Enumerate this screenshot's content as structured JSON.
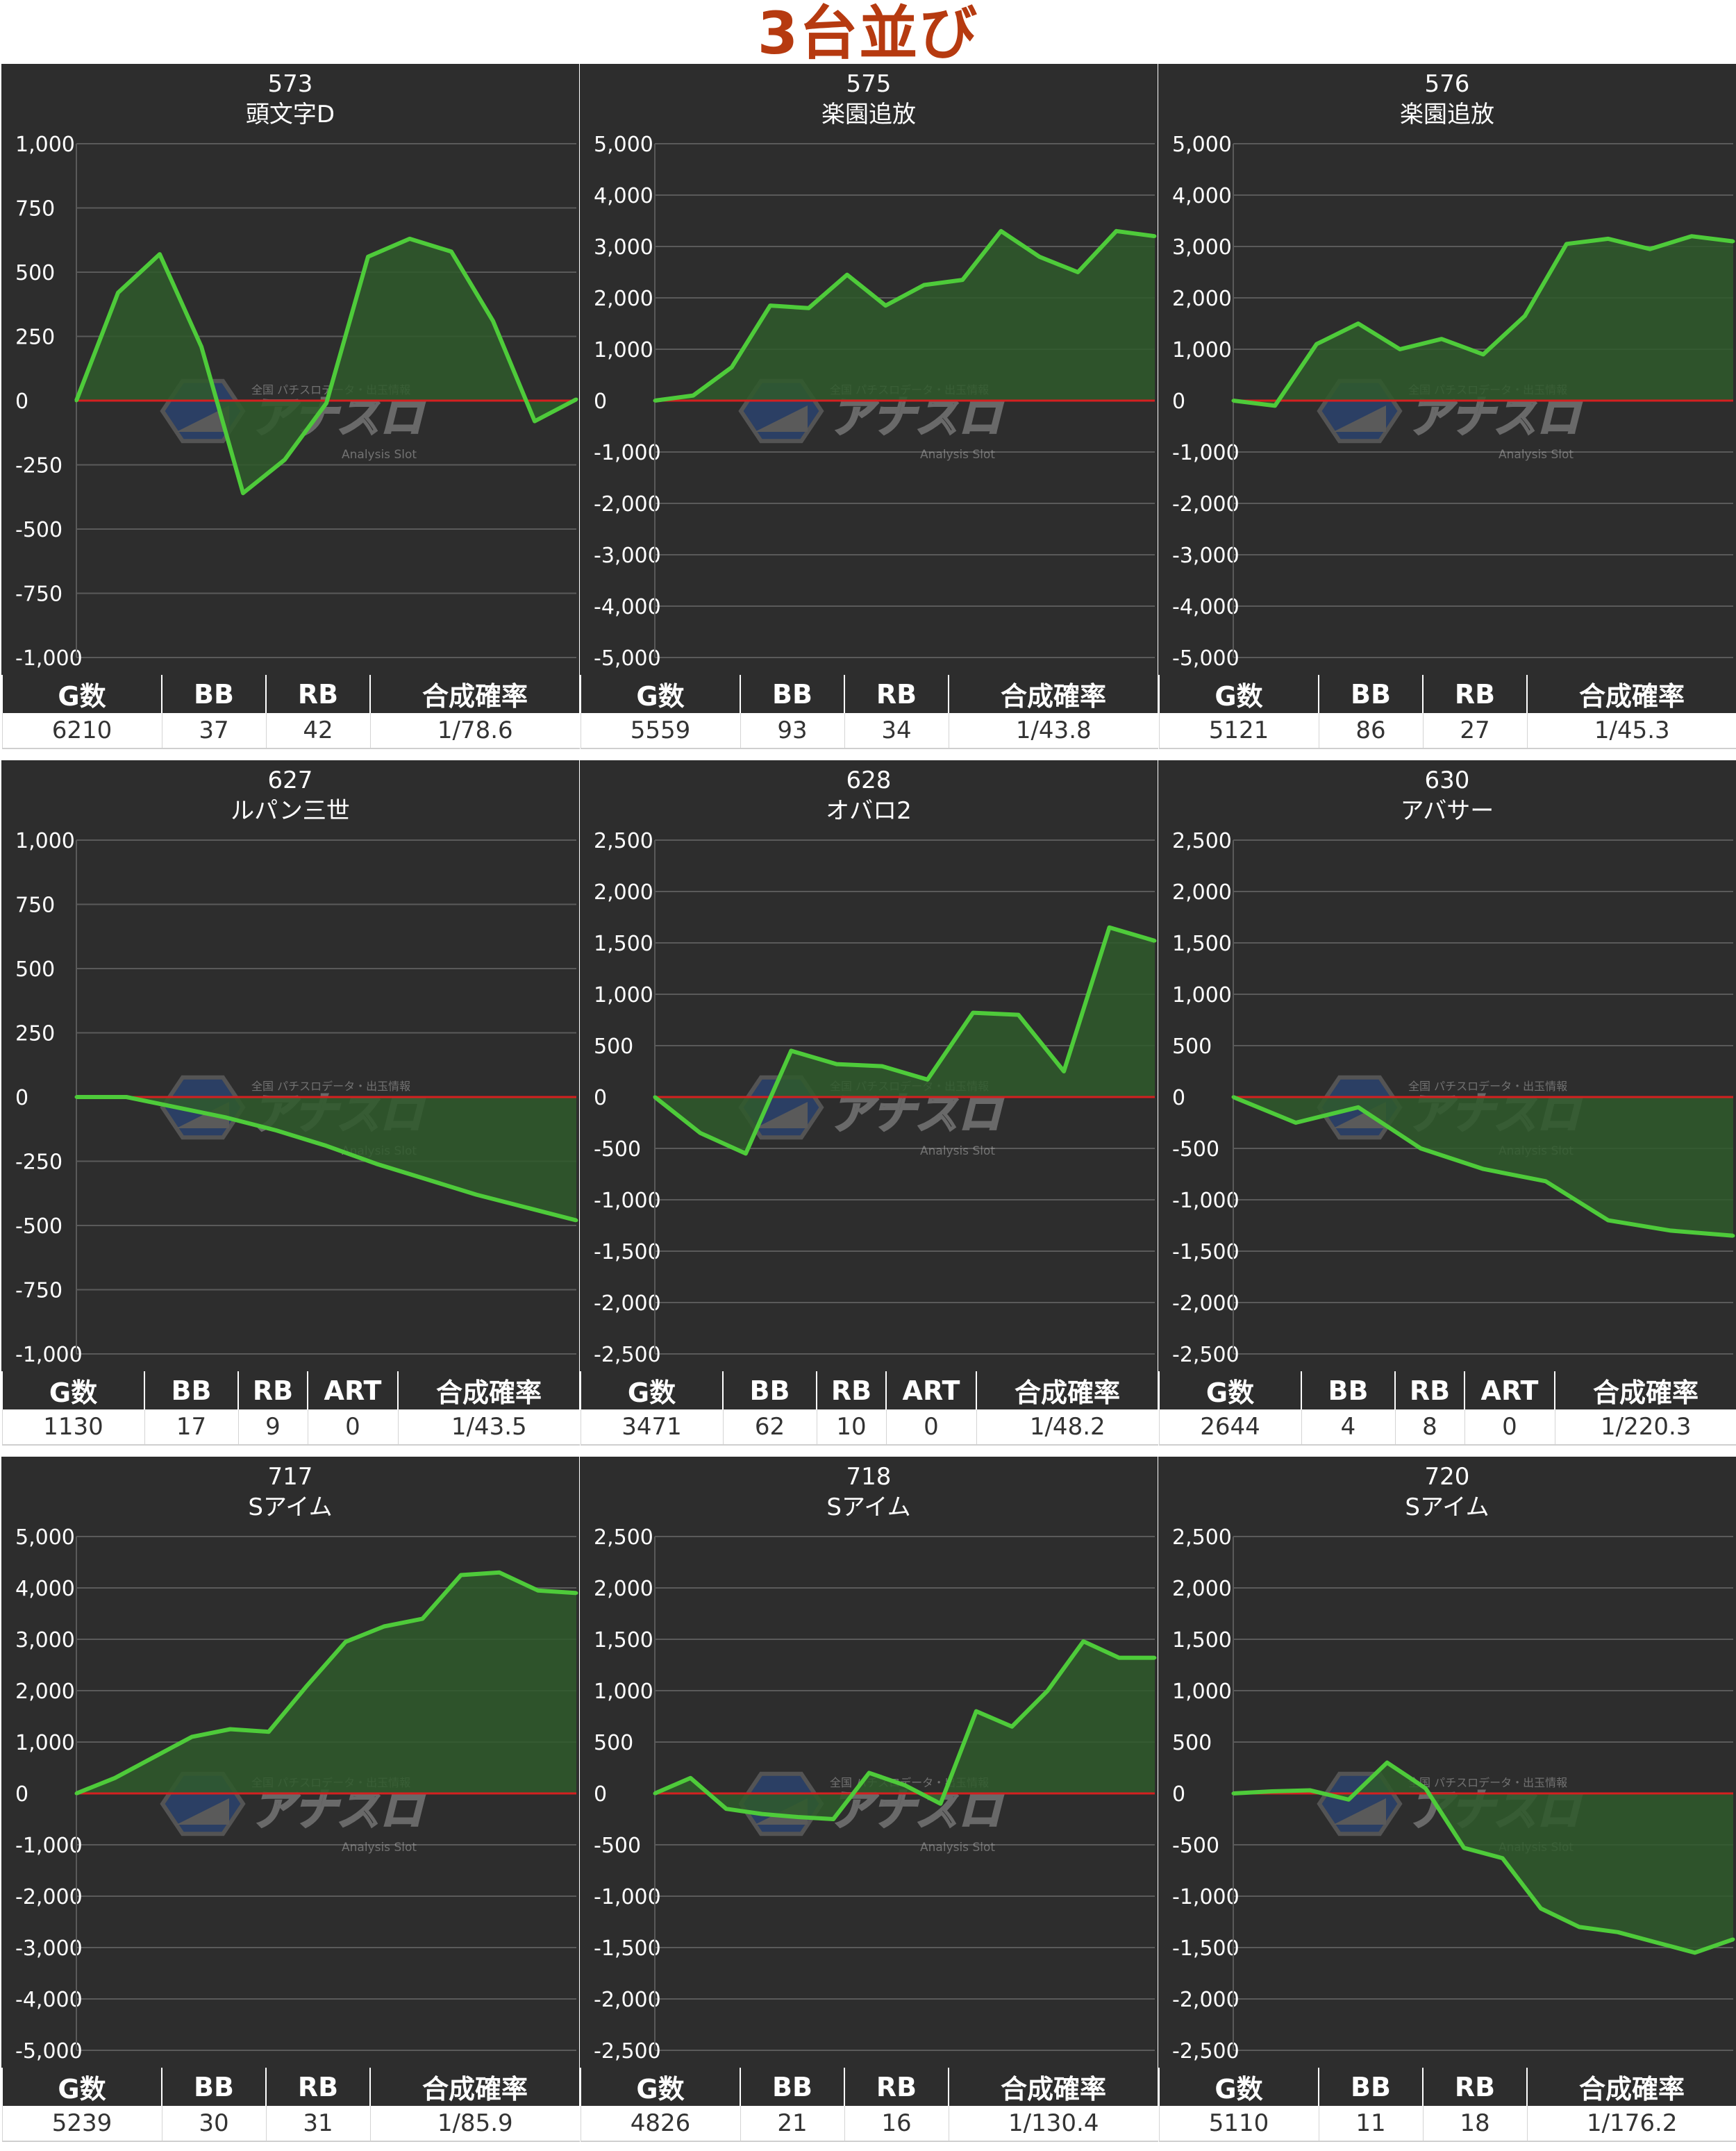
{
  "page": {
    "title": "3台並び"
  },
  "colors": {
    "panel_bg": "#2d2d2d",
    "line": "#4ecb3a",
    "fill": "#2f5a2c",
    "zero_line": "#d42020",
    "grid": "#5a5a5a",
    "title_accent": "#b63a10"
  },
  "watermark": {
    "brand": "アナスロ",
    "tagline": "全国 パチスロデータ・出玉情報",
    "sub": "Analysis Slot",
    "icon": "hexagon-logo-icon"
  },
  "chart_data": [
    {
      "type": "area",
      "number": "573",
      "machine": "頭文字D",
      "ylim": [
        -1000,
        1000
      ],
      "yticks": [
        "1,000",
        "750",
        "500",
        "250",
        "0",
        "-250",
        "-500",
        "-750",
        "-1,000"
      ],
      "values": [
        0,
        420,
        570,
        210,
        -360,
        -230,
        -10,
        560,
        630,
        580,
        310,
        -80,
        5
      ],
      "stats": {
        "headers": [
          "G数",
          "BB",
          "RB",
          "合成確率"
        ],
        "values": [
          "6210",
          "37",
          "42",
          "1/78.6"
        ]
      }
    },
    {
      "type": "area",
      "number": "575",
      "machine": "楽園追放",
      "ylim": [
        -5000,
        5000
      ],
      "yticks": [
        "5,000",
        "4,000",
        "3,000",
        "2,000",
        "1,000",
        "0",
        "-1,000",
        "-2,000",
        "-3,000",
        "-4,000",
        "-5,000"
      ],
      "values": [
        0,
        100,
        650,
        1850,
        1800,
        2450,
        1850,
        2250,
        2350,
        3300,
        2800,
        2500,
        3300,
        3200
      ],
      "stats": {
        "headers": [
          "G数",
          "BB",
          "RB",
          "合成確率"
        ],
        "values": [
          "5559",
          "93",
          "34",
          "1/43.8"
        ]
      }
    },
    {
      "type": "area",
      "number": "576",
      "machine": "楽園追放",
      "ylim": [
        -5000,
        5000
      ],
      "yticks": [
        "5,000",
        "4,000",
        "3,000",
        "2,000",
        "1,000",
        "0",
        "-1,000",
        "-2,000",
        "-3,000",
        "-4,000",
        "-5,000"
      ],
      "values": [
        0,
        -100,
        1100,
        1500,
        1000,
        1200,
        900,
        1650,
        3050,
        3150,
        2950,
        3200,
        3100
      ],
      "stats": {
        "headers": [
          "G数",
          "BB",
          "RB",
          "合成確率"
        ],
        "values": [
          "5121",
          "86",
          "27",
          "1/45.3"
        ]
      }
    },
    {
      "type": "area",
      "number": "627",
      "machine": "ルパン三世",
      "ylim": [
        -1000,
        1000
      ],
      "yticks": [
        "1,000",
        "750",
        "500",
        "250",
        "0",
        "-250",
        "-500",
        "-750",
        "-1,000"
      ],
      "values": [
        0,
        0,
        -40,
        -80,
        -130,
        -190,
        -260,
        -320,
        -380,
        -430,
        -480
      ],
      "stats": {
        "headers": [
          "G数",
          "BB",
          "RB",
          "ART",
          "合成確率"
        ],
        "values": [
          "1130",
          "17",
          "9",
          "0",
          "1/43.5"
        ]
      }
    },
    {
      "type": "area",
      "number": "628",
      "machine": "オバロ2",
      "ylim": [
        -2500,
        2500
      ],
      "yticks": [
        "2,500",
        "2,000",
        "1,500",
        "1,000",
        "500",
        "0",
        "-500",
        "-1,000",
        "-1,500",
        "-2,000",
        "-2,500"
      ],
      "values": [
        0,
        -350,
        -550,
        450,
        320,
        300,
        170,
        820,
        800,
        250,
        1650,
        1520
      ],
      "stats": {
        "headers": [
          "G数",
          "BB",
          "RB",
          "ART",
          "合成確率"
        ],
        "values": [
          "3471",
          "62",
          "10",
          "0",
          "1/48.2"
        ]
      }
    },
    {
      "type": "area",
      "number": "630",
      "machine": "アバサー",
      "ylim": [
        -2500,
        2500
      ],
      "yticks": [
        "2,500",
        "2,000",
        "1,500",
        "1,000",
        "500",
        "0",
        "-500",
        "-1,000",
        "-1,500",
        "-2,000",
        "-2,500"
      ],
      "values": [
        0,
        -250,
        -100,
        -500,
        -700,
        -820,
        -1200,
        -1300,
        -1350
      ],
      "stats": {
        "headers": [
          "G数",
          "BB",
          "RB",
          "ART",
          "合成確率"
        ],
        "values": [
          "2644",
          "4",
          "8",
          "0",
          "1/220.3"
        ]
      }
    },
    {
      "type": "area",
      "number": "717",
      "machine": "Sアイム",
      "ylim": [
        -5000,
        5000
      ],
      "yticks": [
        "5,000",
        "4,000",
        "3,000",
        "2,000",
        "1,000",
        "0",
        "-1,000",
        "-2,000",
        "-3,000",
        "-4,000",
        "-5,000"
      ],
      "values": [
        0,
        300,
        700,
        1100,
        1250,
        1200,
        2100,
        2950,
        3250,
        3400,
        4250,
        4300,
        3950,
        3900
      ],
      "stats": {
        "headers": [
          "G数",
          "BB",
          "RB",
          "合成確率"
        ],
        "values": [
          "5239",
          "30",
          "31",
          "1/85.9"
        ]
      }
    },
    {
      "type": "area",
      "number": "718",
      "machine": "Sアイム",
      "ylim": [
        -2500,
        2500
      ],
      "yticks": [
        "2,500",
        "2,000",
        "1,500",
        "1,000",
        "500",
        "0",
        "-500",
        "-1,000",
        "-1,500",
        "-2,000",
        "-2,500"
      ],
      "values": [
        0,
        150,
        -150,
        -200,
        -230,
        -250,
        200,
        80,
        -100,
        800,
        650,
        1000,
        1480,
        1320,
        1320
      ],
      "stats": {
        "headers": [
          "G数",
          "BB",
          "RB",
          "合成確率"
        ],
        "values": [
          "4826",
          "21",
          "16",
          "1/130.4"
        ]
      }
    },
    {
      "type": "area",
      "number": "720",
      "machine": "Sアイム",
      "ylim": [
        -2500,
        2500
      ],
      "yticks": [
        "2,500",
        "2,000",
        "1,500",
        "1,000",
        "500",
        "0",
        "-500",
        "-1,000",
        "-1,500",
        "-2,000",
        "-2,500"
      ],
      "values": [
        0,
        20,
        30,
        -60,
        300,
        50,
        -530,
        -630,
        -1120,
        -1300,
        -1350,
        -1450,
        -1550,
        -1420
      ],
      "stats": {
        "headers": [
          "G数",
          "BB",
          "RB",
          "合成確率"
        ],
        "values": [
          "5110",
          "11",
          "18",
          "1/176.2"
        ]
      }
    }
  ]
}
